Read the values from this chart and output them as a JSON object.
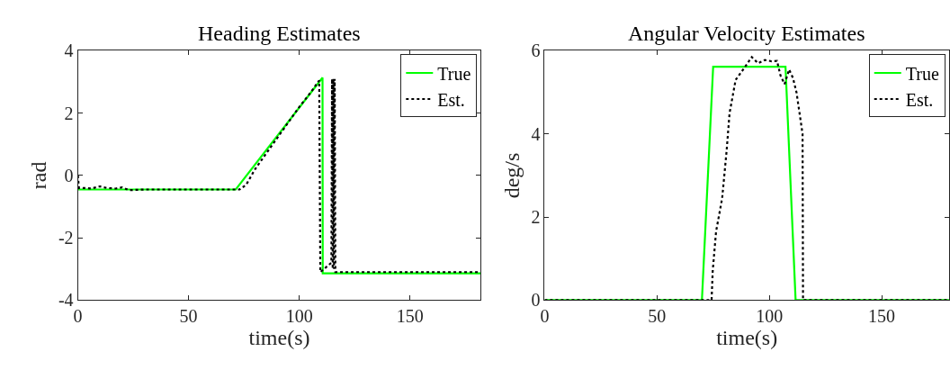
{
  "chart_data": [
    {
      "type": "line",
      "title": "Heading Estimates",
      "xlabel": "time(s)",
      "ylabel": "rad",
      "xlim": [
        0,
        182
      ],
      "ylim": [
        -4,
        4
      ],
      "xticks": [
        0,
        50,
        100,
        150
      ],
      "yticks": [
        -4,
        -2,
        0,
        2,
        4
      ],
      "legend": "top right",
      "series": [
        {
          "name": "True",
          "color": "#00ff00",
          "line_style": "solid",
          "x": [
            0,
            71.3,
            110.5,
            110.6,
            182
          ],
          "values": [
            -0.45,
            -0.45,
            3.14,
            -3.14,
            -3.14
          ]
        },
        {
          "name": "Est.",
          "color": "#000000",
          "line_style": "dotted",
          "x": [
            0,
            0.5,
            3,
            6,
            10,
            13,
            17,
            20,
            23,
            30,
            73,
            76,
            80,
            90,
            100,
            105,
            109,
            109.5,
            112,
            114.5,
            114.8,
            115.1,
            115.4,
            115.7,
            116,
            116.3,
            182
          ],
          "values": [
            0,
            -0.4,
            -0.4,
            -0.42,
            -0.35,
            -0.4,
            -0.42,
            -0.38,
            -0.47,
            -0.45,
            -0.45,
            -0.3,
            0.2,
            1.2,
            2.2,
            2.65,
            3.05,
            -3.1,
            -2.95,
            -2.8,
            3.1,
            -3.0,
            3.1,
            -3.0,
            3.1,
            -3.1,
            -3.1
          ]
        }
      ]
    },
    {
      "type": "line",
      "title": "Angular Velocity Estimates",
      "xlabel": "time(s)",
      "ylabel": "deg/s",
      "xlim": [
        0,
        180
      ],
      "ylim": [
        0,
        6
      ],
      "xticks": [
        0,
        50,
        100,
        150
      ],
      "yticks": [
        0,
        2,
        4,
        6
      ],
      "legend": "top right",
      "series": [
        {
          "name": "True",
          "color": "#00ff00",
          "line_style": "solid",
          "x": [
            0,
            70,
            75,
            107.2,
            111.7,
            180
          ],
          "values": [
            0,
            0,
            5.62,
            5.62,
            0,
            0
          ]
        },
        {
          "name": "Est.",
          "color": "#000000",
          "line_style": "dotted",
          "x": [
            0,
            74.3,
            74.8,
            76.3,
            79,
            81,
            82.3,
            85,
            89,
            92.2,
            95,
            98,
            101,
            103.4,
            105,
            106.8,
            108.8,
            110.5,
            112.1,
            114.8,
            115,
            180
          ],
          "values": [
            0,
            0,
            0.7,
            1.65,
            2.45,
            3.6,
            4.5,
            5.3,
            5.6,
            5.85,
            5.7,
            5.78,
            5.75,
            5.76,
            5.4,
            5.2,
            5.55,
            5.35,
            5.0,
            4.0,
            0,
            0
          ]
        }
      ]
    }
  ]
}
